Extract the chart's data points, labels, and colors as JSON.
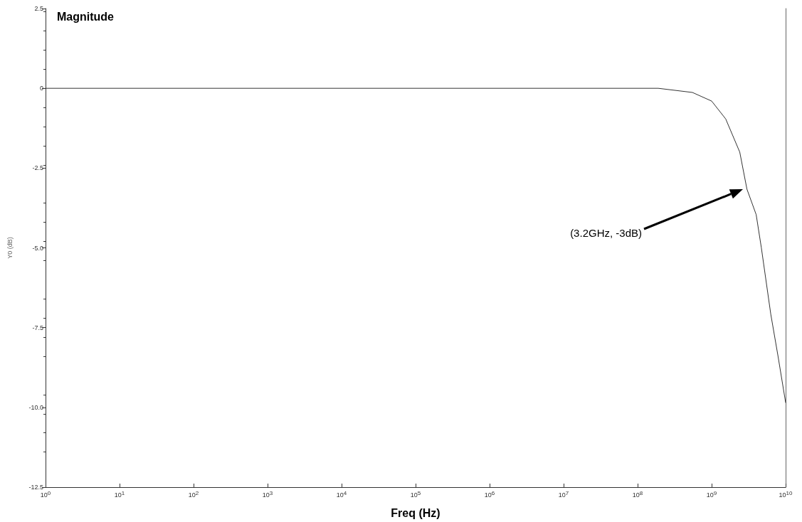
{
  "chart_data": {
    "type": "line",
    "title": "Magnitude",
    "xlabel": "Freq (Hz)",
    "ylabel": "Y0 (dB)",
    "log": "x",
    "x": [
      1,
      10,
      100,
      1000,
      10000,
      100000,
      1000000,
      10000000,
      100000000,
      190000000,
      550000000,
      1000000000,
      1550000000,
      2400000000,
      3000000000,
      4000000000,
      4700000000,
      6300000000,
      7900000000,
      10000000000
    ],
    "series": [
      {
        "color": "#333333",
        "values": [
          0,
          0,
          0,
          0,
          0,
          0,
          0,
          0,
          0,
          0,
          -0.13,
          -0.4,
          -0.96,
          -2.0,
          -3.16,
          -3.96,
          -5.0,
          -7.08,
          -8.4,
          -9.85
        ]
      }
    ],
    "xlim": [
      1,
      10000000000
    ],
    "xticks": [
      {
        "value": 1,
        "label": "10$^{0}$"
      },
      {
        "value": 10,
        "label": "10$^{1}$"
      },
      {
        "value": 100,
        "label": "10$^{2}$"
      },
      {
        "value": 1000,
        "label": "10$^{3}$"
      },
      {
        "value": 10000,
        "label": "10$^{4}$"
      },
      {
        "value": 100000,
        "label": "10$^{5}$"
      },
      {
        "value": 1000000,
        "label": "10$^{6}$"
      },
      {
        "value": 10000000,
        "label": "10$^{7}$"
      },
      {
        "value": 100000000,
        "label": "10$^{8}$"
      },
      {
        "value": 1000000000,
        "label": "10$^{9}$"
      },
      {
        "value": 10000000000,
        "label": "10$^{10}$"
      }
    ],
    "ylim": [
      -12.5,
      2.5
    ],
    "yticks": [
      2.5,
      0,
      -2.5,
      {
        "value": -5,
        "label": "-5.0"
      },
      -7.5,
      {
        "value": -10,
        "label": "-10.0"
      },
      -12.5
    ],
    "annotations": [
      "(3.2GHz, -3dB)"
    ],
    "grid": false,
    "marker": "none",
    "line_style": "solid"
  }
}
